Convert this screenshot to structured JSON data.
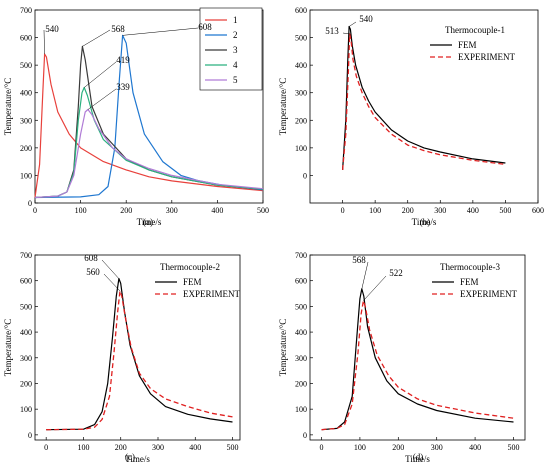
{
  "chart_data": [
    {
      "id": "a",
      "type": "line",
      "caption": "(a)",
      "xlabel": "Time/s",
      "ylabel": "Temperature/°C",
      "xlim": [
        0,
        500
      ],
      "ylim": [
        0,
        700
      ],
      "xticks": [
        0,
        100,
        200,
        300,
        400,
        500
      ],
      "yticks": [
        0,
        100,
        200,
        300,
        400,
        500,
        600,
        700
      ],
      "legend": "top-right",
      "series": [
        {
          "name": "1",
          "color": "#e8413c",
          "x": [
            0,
            10,
            17,
            21,
            25,
            35,
            50,
            75,
            100,
            150,
            200,
            250,
            300,
            400,
            500
          ],
          "y": [
            20,
            140,
            400,
            540,
            530,
            430,
            330,
            250,
            200,
            150,
            120,
            95,
            80,
            60,
            45
          ]
        },
        {
          "name": "2",
          "color": "#1f77d0",
          "x": [
            0,
            100,
            140,
            160,
            175,
            185,
            192,
            200,
            215,
            240,
            280,
            320,
            360,
            420,
            500
          ],
          "y": [
            20,
            22,
            30,
            60,
            200,
            450,
            608,
            580,
            400,
            250,
            150,
            100,
            80,
            62,
            48
          ]
        },
        {
          "name": "3",
          "color": "#3a3a3a",
          "x": [
            0,
            50,
            70,
            85,
            95,
            100,
            104,
            110,
            125,
            150,
            200,
            250,
            300,
            400,
            500
          ],
          "y": [
            20,
            25,
            40,
            120,
            350,
            500,
            568,
            520,
            350,
            250,
            160,
            120,
            95,
            65,
            50
          ]
        },
        {
          "name": "4",
          "color": "#2bb07f",
          "x": [
            0,
            50,
            70,
            85,
            95,
            103,
            108,
            115,
            130,
            150,
            200,
            250,
            300,
            400,
            500
          ],
          "y": [
            20,
            25,
            40,
            110,
            300,
            400,
            419,
            390,
            300,
            230,
            155,
            120,
            95,
            65,
            50
          ]
        },
        {
          "name": "5",
          "color": "#b07cd6",
          "x": [
            0,
            50,
            70,
            85,
            100,
            110,
            116,
            125,
            140,
            170,
            200,
            250,
            300,
            400,
            500
          ],
          "y": [
            20,
            25,
            40,
            100,
            250,
            330,
            339,
            320,
            270,
            200,
            160,
            125,
            100,
            68,
            52
          ]
        }
      ],
      "annotations": [
        {
          "text": "540",
          "x": 21,
          "y": 540
        },
        {
          "text": "568",
          "x": 104,
          "y": 568
        },
        {
          "text": "608",
          "x": 192,
          "y": 608
        },
        {
          "text": "419",
          "x": 108,
          "y": 419
        },
        {
          "text": "339",
          "x": 116,
          "y": 339
        }
      ]
    },
    {
      "id": "b",
      "type": "line",
      "caption": "(b)",
      "title": "Thermocouple-1",
      "xlabel": "Time/s",
      "ylabel": "Temperature/°C",
      "xlim": [
        -100,
        600
      ],
      "ylim": [
        -100,
        600
      ],
      "xticks": [
        0,
        100,
        200,
        300,
        400,
        500,
        600
      ],
      "yticks": [
        0,
        100,
        200,
        300,
        400,
        500,
        600
      ],
      "legend": "top-right",
      "series": [
        {
          "name": "FEM",
          "color": "#000000",
          "dash": "",
          "x": [
            0,
            10,
            16,
            20,
            24,
            30,
            40,
            60,
            80,
            100,
            150,
            200,
            250,
            300,
            400,
            500
          ],
          "y": [
            20,
            200,
            420,
            540,
            530,
            470,
            400,
            320,
            270,
            230,
            165,
            125,
            100,
            85,
            60,
            45
          ]
        },
        {
          "name": "EXPERIMENT",
          "color": "#e02020",
          "dash": "5,3",
          "x": [
            0,
            10,
            18,
            22,
            26,
            32,
            42,
            60,
            80,
            100,
            150,
            200,
            250,
            300,
            400,
            500
          ],
          "y": [
            20,
            150,
            380,
            513,
            490,
            420,
            360,
            300,
            250,
            210,
            150,
            110,
            90,
            75,
            55,
            40
          ]
        }
      ],
      "annotations": [
        {
          "text": "513",
          "x": 22,
          "y": 513
        },
        {
          "text": "540",
          "x": 20,
          "y": 540
        }
      ]
    },
    {
      "id": "c",
      "type": "line",
      "caption": "(c)",
      "title": "Thermocouple-2",
      "xlabel": "Time/s",
      "ylabel": "Temperature/°C",
      "xlim": [
        -30,
        520
      ],
      "ylim": [
        -20,
        700
      ],
      "xticks": [
        0,
        100,
        200,
        300,
        400,
        500
      ],
      "yticks": [
        0,
        100,
        200,
        300,
        400,
        500,
        600,
        700
      ],
      "legend": "top-right",
      "series": [
        {
          "name": "FEM",
          "color": "#000000",
          "dash": "",
          "x": [
            0,
            100,
            130,
            150,
            165,
            178,
            188,
            195,
            200,
            210,
            225,
            250,
            280,
            320,
            380,
            440,
            500
          ],
          "y": [
            20,
            22,
            40,
            90,
            200,
            380,
            540,
            608,
            590,
            480,
            350,
            230,
            160,
            110,
            80,
            62,
            50
          ]
        },
        {
          "name": "EXPERIMENT",
          "color": "#e02020",
          "dash": "5,3",
          "x": [
            0,
            100,
            130,
            150,
            170,
            182,
            192,
            198,
            203,
            212,
            228,
            250,
            280,
            320,
            380,
            440,
            500
          ],
          "y": [
            20,
            22,
            30,
            60,
            150,
            320,
            480,
            560,
            540,
            460,
            340,
            240,
            180,
            140,
            110,
            85,
            70
          ]
        }
      ],
      "annotations": [
        {
          "text": "608",
          "x": 195,
          "y": 608
        },
        {
          "text": "560",
          "x": 198,
          "y": 560
        }
      ]
    },
    {
      "id": "d",
      "type": "line",
      "caption": "(d)",
      "title": "Thermocouple-3",
      "xlabel": "Time/s",
      "ylabel": "Temperature/°C",
      "xlim": [
        -30,
        530
      ],
      "ylim": [
        -20,
        700
      ],
      "xticks": [
        0,
        100,
        200,
        300,
        400,
        500
      ],
      "yticks": [
        0,
        100,
        200,
        300,
        400,
        500,
        600,
        700
      ],
      "legend": "top-right",
      "series": [
        {
          "name": "FEM",
          "color": "#000000",
          "dash": "",
          "x": [
            0,
            40,
            60,
            80,
            92,
            100,
            105,
            110,
            120,
            140,
            170,
            200,
            250,
            300,
            400,
            500
          ],
          "y": [
            20,
            25,
            50,
            150,
            380,
            530,
            568,
            540,
            420,
            300,
            210,
            160,
            120,
            95,
            65,
            50
          ]
        },
        {
          "name": "EXPERIMENT",
          "color": "#e02020",
          "dash": "5,3",
          "x": [
            0,
            40,
            60,
            80,
            95,
            103,
            109,
            114,
            125,
            145,
            175,
            200,
            250,
            300,
            400,
            500
          ],
          "y": [
            20,
            25,
            40,
            120,
            320,
            470,
            522,
            500,
            410,
            310,
            230,
            185,
            140,
            115,
            85,
            65
          ]
        }
      ],
      "annotations": [
        {
          "text": "568",
          "x": 105,
          "y": 568
        },
        {
          "text": "522",
          "x": 109,
          "y": 522
        }
      ]
    }
  ]
}
